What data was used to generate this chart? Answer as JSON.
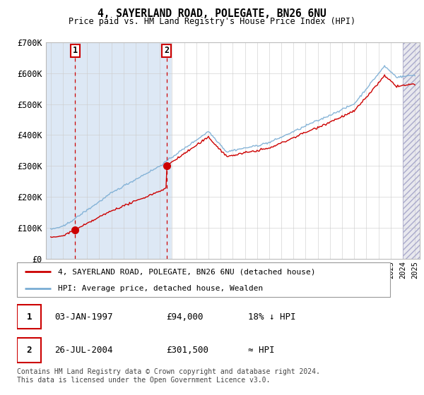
{
  "title": "4, SAYERLAND ROAD, POLEGATE, BN26 6NU",
  "subtitle": "Price paid vs. HM Land Registry's House Price Index (HPI)",
  "ylim": [
    0,
    700000
  ],
  "yticks": [
    0,
    100000,
    200000,
    300000,
    400000,
    500000,
    600000,
    700000
  ],
  "ytick_labels": [
    "£0",
    "£100K",
    "£200K",
    "£300K",
    "£400K",
    "£500K",
    "£600K",
    "£700K"
  ],
  "xlim_start": 1994.6,
  "xlim_end": 2025.4,
  "sale1_date": 1997.01,
  "sale1_price": 94000,
  "sale1_label": "1",
  "sale2_date": 2004.56,
  "sale2_price": 301500,
  "sale2_label": "2",
  "legend_line1": "4, SAYERLAND ROAD, POLEGATE, BN26 6NU (detached house)",
  "legend_line2": "HPI: Average price, detached house, Wealden",
  "table_row1": [
    "1",
    "03-JAN-1997",
    "£94,000",
    "18% ↓ HPI"
  ],
  "table_row2": [
    "2",
    "26-JUL-2004",
    "£301,500",
    "≈ HPI"
  ],
  "footnote": "Contains HM Land Registry data © Crown copyright and database right 2024.\nThis data is licensed under the Open Government Licence v3.0.",
  "hpi_color": "#7aadd4",
  "price_color": "#cc0000",
  "bg_shaded_color": "#dde8f5",
  "hatch_color": "#ccccdd",
  "grid_color": "#cccccc",
  "sale_marker_color": "#cc0000"
}
